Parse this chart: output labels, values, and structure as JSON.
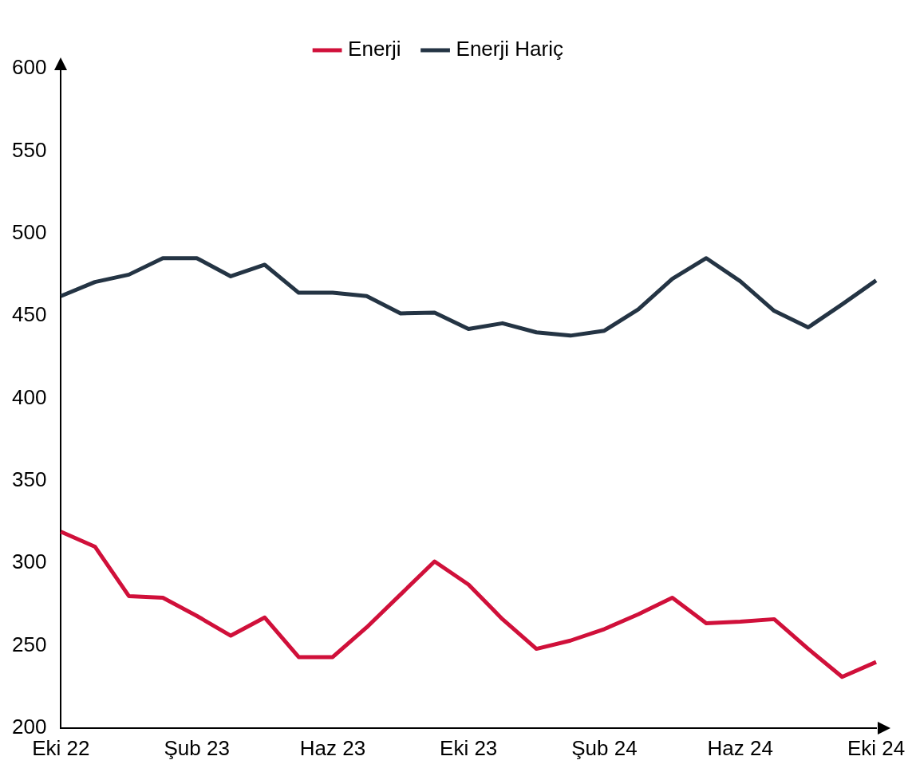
{
  "chart_data": {
    "type": "line",
    "categories": [
      "Eki 22",
      null,
      null,
      null,
      "Şub 23",
      null,
      null,
      null,
      "Haz 23",
      null,
      null,
      null,
      "Eki 23",
      null,
      null,
      null,
      "Şub 24",
      null,
      null,
      null,
      "Haz 24",
      null,
      null,
      null,
      "Eki 24"
    ],
    "series": [
      {
        "name": "Enerji",
        "color": "#d0103a",
        "values": [
          319,
          310,
          280,
          279,
          268,
          256,
          267,
          243,
          243,
          261,
          281,
          301,
          287,
          266,
          248,
          253,
          260,
          269,
          279,
          263.5,
          264.5,
          266,
          248,
          231,
          240
        ]
      },
      {
        "name": "Enerji Hariç",
        "color": "#243444",
        "values": [
          462,
          470.5,
          475,
          485,
          485,
          474,
          481,
          464,
          464,
          462,
          451.5,
          452,
          442,
          445.5,
          440,
          438,
          441,
          454,
          472.5,
          485,
          471,
          453,
          443,
          457,
          471.5
        ]
      }
    ],
    "ylim": [
      200,
      600
    ],
    "yticks": [
      200,
      250,
      300,
      350,
      400,
      450,
      500,
      550,
      600
    ],
    "grid": false,
    "legend": "top",
    "marker": "none",
    "line_style": "solid"
  }
}
